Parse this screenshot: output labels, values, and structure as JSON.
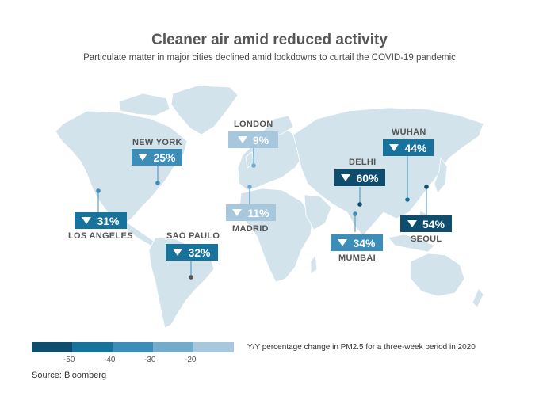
{
  "title": "Cleaner air amid reduced activity",
  "subtitle": "Particulate matter in major cities declined amid lockdowns to curtail the COVID-19 pandemic",
  "cities": [
    {
      "name": "NEW YORK",
      "value": "25%"
    },
    {
      "name": "LOS ANGELES",
      "value": "31%"
    },
    {
      "name": "SAO PAULO",
      "value": "32%"
    },
    {
      "name": "LONDON",
      "value": "9%"
    },
    {
      "name": "MADRID",
      "value": "11%"
    },
    {
      "name": "DELHI",
      "value": "60%"
    },
    {
      "name": "MUMBAI",
      "value": "34%"
    },
    {
      "name": "WUHAN",
      "value": "44%"
    },
    {
      "name": "SEOUL",
      "value": "54%"
    }
  ],
  "legend": {
    "ticks": [
      "-50",
      "-40",
      "-30",
      "-20"
    ],
    "caption": "Y/Y percentage change in PM2.5 for a three-week period in 2020",
    "colors": [
      "#0f4d6e",
      "#17729c",
      "#3c8db7",
      "#74abcb",
      "#a7c8dc"
    ]
  },
  "colors": {
    "land": "#d3e3ec",
    "dark": "#0f4d6e",
    "mid": "#17729c",
    "medium": "#3c8db7",
    "light": "#74abcb",
    "lightest": "#a7c8dc"
  },
  "source": "Source: Bloomberg"
}
